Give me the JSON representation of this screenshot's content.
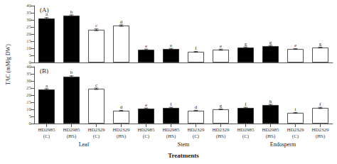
{
  "chart_data": [
    {
      "type": "bar",
      "title": "(A)",
      "ylabel": "TAC (mM/g DW)",
      "categories": [
        null,
        null,
        null,
        null,
        null,
        null,
        null,
        null,
        null,
        null,
        null,
        null
      ],
      "values": [
        31,
        33,
        23,
        26,
        9,
        9.5,
        7.5,
        9,
        10.5,
        11.5,
        9.5,
        10.5
      ],
      "errors": [
        0.6,
        0.5,
        0.6,
        0.5,
        0.4,
        0.4,
        0.3,
        0.4,
        0.4,
        0.4,
        0.3,
        0.3
      ],
      "annotations": [
        "a",
        "b",
        "c",
        "d",
        "e",
        "e",
        "f",
        "e",
        "g",
        "g",
        "e",
        "g"
      ],
      "colors": [
        "black",
        "black",
        "white",
        "white",
        "black",
        "black",
        "white",
        "white",
        "black",
        "black",
        "white",
        "white"
      ],
      "ylim": [
        0,
        40
      ],
      "yticks": [
        0,
        5,
        10,
        15,
        20,
        25,
        30,
        35,
        40
      ],
      "grid": false
    },
    {
      "type": "bar",
      "title": "(B)",
      "xlabel": "Treatments",
      "categories": [
        "HD2985\n(C)",
        "HD2985\n(HS)",
        "HD2329\n(C)",
        "HD2329\n(HS)",
        "HD2985\n(C)",
        "HD2985\n(HS)",
        "HD2329\n(C)",
        "HD2329\n(HS)",
        "HD2985\n(C)",
        "HD2985\n(HS)",
        "HD2329\n(C)",
        "HD2329\n(HS)"
      ],
      "group_labels": [
        "Leaf",
        "Stem",
        "Endosperm"
      ],
      "values": [
        24,
        33,
        24.5,
        9,
        10.5,
        11,
        9,
        10,
        11,
        13,
        7.5,
        11
      ],
      "errors": [
        0.5,
        0.6,
        0.5,
        0.3,
        0.4,
        0.4,
        0.3,
        0.3,
        0.4,
        0.5,
        0.3,
        0.4
      ],
      "annotations": [
        "a",
        "b",
        "c",
        "d",
        "e",
        "f",
        "d",
        "g",
        "f",
        "h",
        "i",
        "f"
      ],
      "colors": [
        "black",
        "black",
        "white",
        "white",
        "black",
        "black",
        "white",
        "white",
        "black",
        "black",
        "white",
        "white"
      ],
      "ylim": [
        0,
        40
      ],
      "yticks": [
        0,
        5,
        10,
        15,
        20,
        25,
        30,
        35,
        40
      ],
      "grid": false
    }
  ]
}
